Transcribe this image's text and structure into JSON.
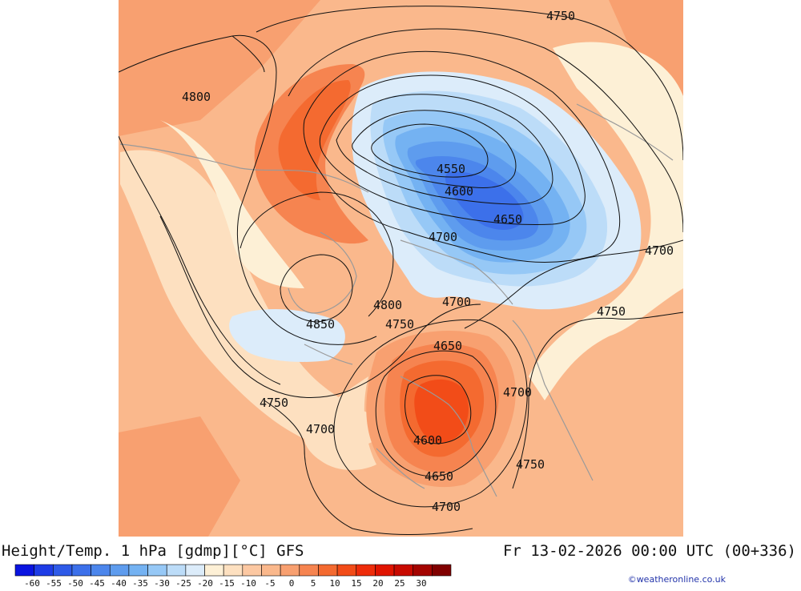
{
  "header": {
    "title": "Height/Temp. 1 hPa [gdmp][°C] GFS",
    "datetime": "Fr 13-02-2026 00:00 UTC (00+336)"
  },
  "footer": {
    "credit": "©weatheronline.co.uk"
  },
  "contour_labels": [
    {
      "text": "4750",
      "lon": 700,
      "lat": 20
    },
    {
      "text": "4800",
      "lon": 245,
      "lat": 121
    },
    {
      "text": "4550",
      "lon": 563,
      "lat": 211
    },
    {
      "text": "4600",
      "lon": 573,
      "lat": 239
    },
    {
      "text": "4650",
      "lon": 634,
      "lat": 274
    },
    {
      "text": "4700",
      "lon": 553,
      "lat": 296
    },
    {
      "text": "4700",
      "lon": 823,
      "lat": 313
    },
    {
      "text": "4800",
      "lon": 484,
      "lat": 381
    },
    {
      "text": "4700",
      "lon": 570,
      "lat": 377
    },
    {
      "text": "4750",
      "lon": 763,
      "lat": 389
    },
    {
      "text": "4850",
      "lon": 400,
      "lat": 405
    },
    {
      "text": "4750",
      "lon": 499,
      "lat": 405
    },
    {
      "text": "4650",
      "lon": 559,
      "lat": 432
    },
    {
      "text": "4700",
      "lon": 646,
      "lat": 490
    },
    {
      "text": "4750",
      "lon": 342,
      "lat": 503
    },
    {
      "text": "4700",
      "lon": 400,
      "lat": 536
    },
    {
      "text": "4600",
      "lon": 534,
      "lat": 550
    },
    {
      "text": "4750",
      "lon": 662,
      "lat": 580
    },
    {
      "text": "4650",
      "lon": 548,
      "lat": 595
    },
    {
      "text": "4700",
      "lon": 557,
      "lat": 633
    }
  ],
  "legend": {
    "colors": [
      "#0a14e0",
      "#1e3ce6",
      "#2e5ae8",
      "#3c70ea",
      "#4c86ec",
      "#5e9cee",
      "#74b2f2",
      "#96c8f6",
      "#bcdcf8",
      "#dcecfa",
      "#fdf0d6",
      "#fde0c0",
      "#fcc8a2",
      "#fab88c",
      "#f8a070",
      "#f68450",
      "#f46a30",
      "#f24c18",
      "#ee2c0a",
      "#e01400",
      "#c80a00",
      "#a40400",
      "#800000"
    ],
    "tick_labels": [
      "-60",
      "-55",
      "-50",
      "-45",
      "-40",
      "-35",
      "-30",
      "-25",
      "-20",
      "-15",
      "-10",
      "-5",
      "0",
      "5",
      "10",
      "15",
      "20",
      "25",
      "30"
    ]
  }
}
